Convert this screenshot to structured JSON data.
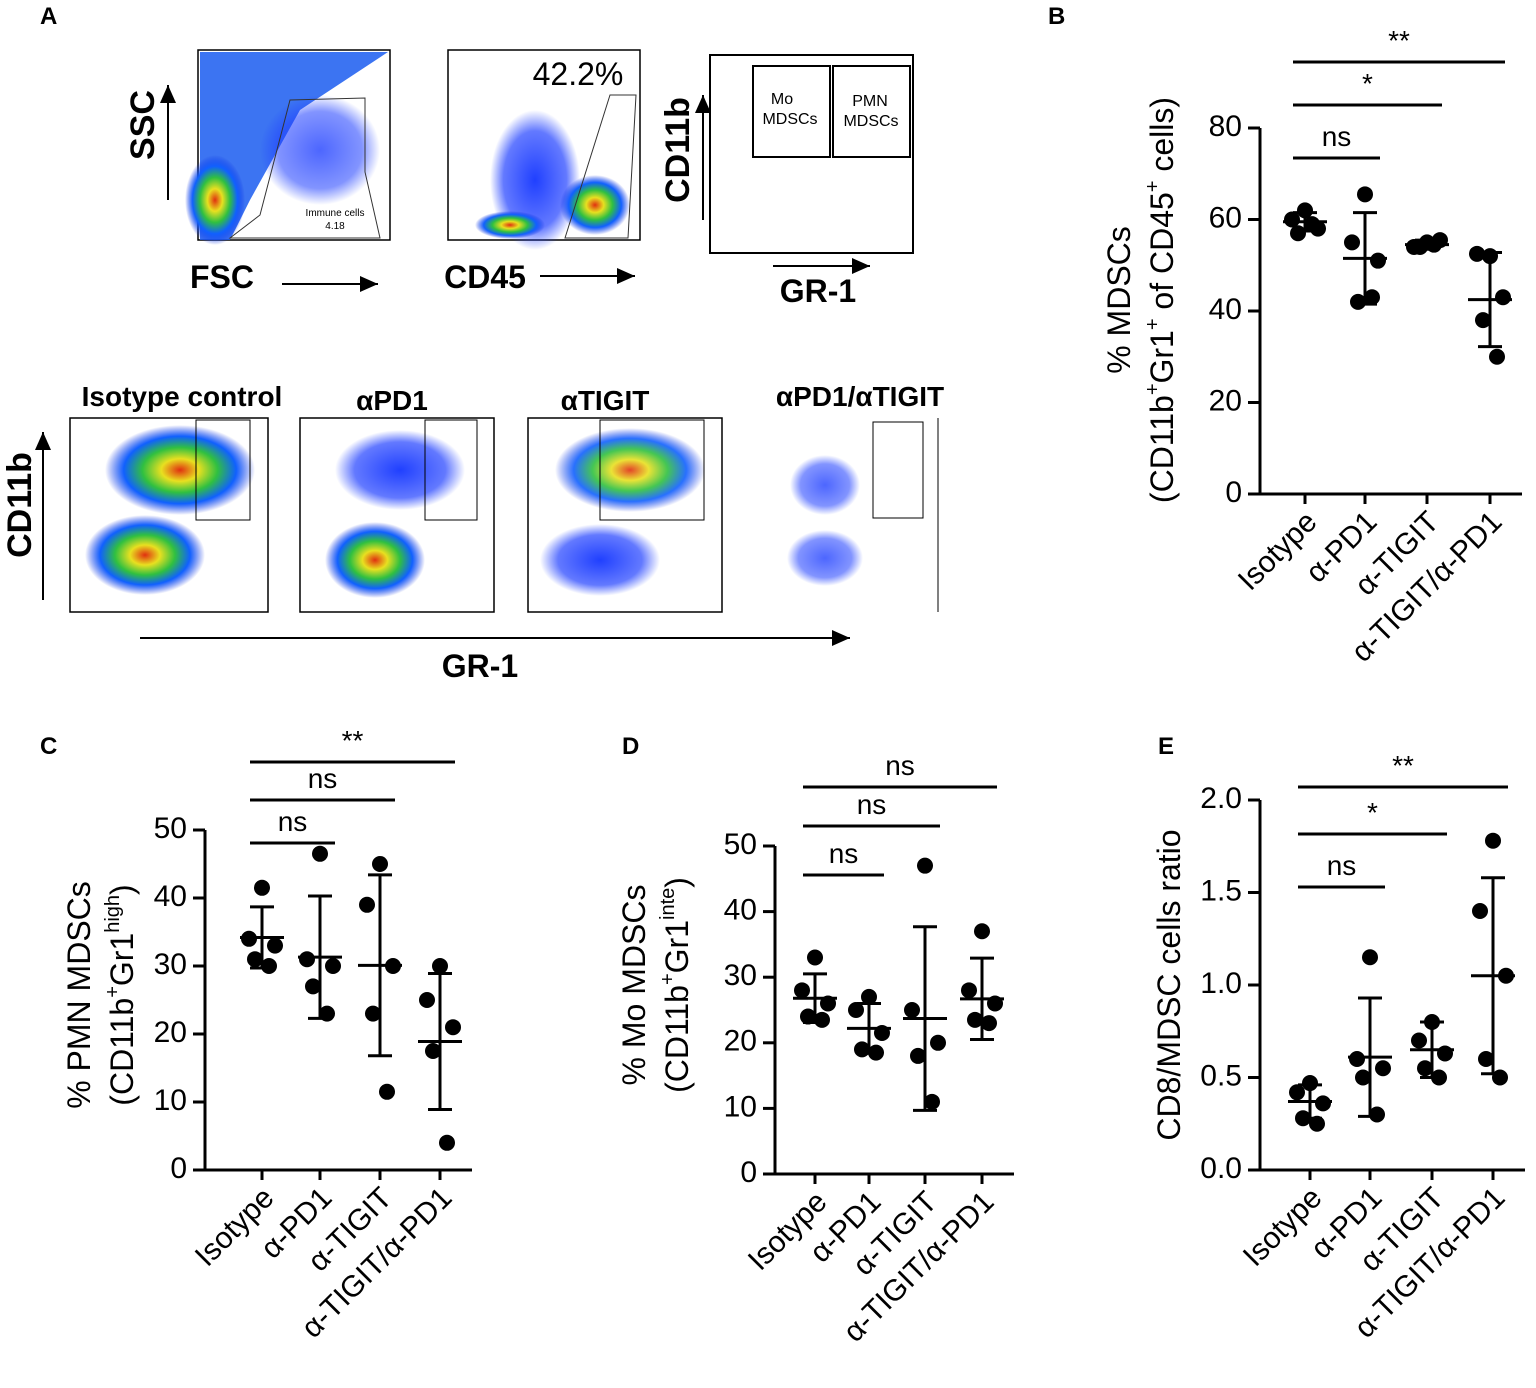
{
  "panel_a": {
    "label": "A",
    "fsc_plot": {
      "y_label": "SSC",
      "x_label": "FSC",
      "gate_label": [
        "Immune cells",
        "4.18"
      ]
    },
    "cd45_plot": {
      "x_label": "CD45",
      "gate_percent": "42.2%"
    },
    "gating_scheme": {
      "y_label": "CD11b",
      "x_label": "GR-1",
      "gates": [
        [
          "Mo",
          "MDSCs"
        ],
        [
          "PMN",
          "MDSCs"
        ]
      ]
    },
    "treatment_plots": {
      "titles": [
        "Isotype control",
        "αPD1",
        "αTIGIT",
        "αPD1/αTIGIT"
      ],
      "y_label": "CD11b",
      "x_label": "GR-1"
    }
  },
  "chart_data": [
    {
      "type": "dotplot",
      "panel_label": "B",
      "ylabel": [
        [
          {
            "text": "% MDSCs"
          }
        ],
        [
          {
            "text": "(CD11b"
          },
          {
            "text": "+",
            "sup": true
          },
          {
            "text": "Gr1"
          },
          {
            "text": "+",
            "sup": true
          },
          {
            "text": " of CD45"
          },
          {
            "text": "+",
            "sup": true
          },
          {
            "text": " cells)"
          }
        ]
      ],
      "categories": [
        "Isotype",
        "α-PD1",
        "α-TIGIT",
        "α-TIGIT/α-PD1"
      ],
      "values": [
        [
          62,
          60,
          58,
          57,
          59
        ],
        [
          65.5,
          55,
          51,
          42,
          43
        ],
        [
          55,
          54,
          55.5,
          54,
          54.5
        ],
        [
          52,
          52.5,
          43,
          38,
          30
        ]
      ],
      "means": [
        59.5,
        51.5,
        54.5,
        42.5
      ],
      "sds": [
        2,
        10,
        1,
        10.3
      ],
      "ylim": [
        0,
        80
      ],
      "yticks": [
        0,
        20,
        40,
        60,
        80
      ],
      "color": "#000000",
      "comparisons": [
        {
          "groups": [
            "Isotype",
            "α-PD1"
          ],
          "label": "ns"
        },
        {
          "groups": [
            "Isotype",
            "α-TIGIT"
          ],
          "label": "*"
        },
        {
          "groups": [
            "Isotype",
            "α-TIGIT/α-PD1"
          ],
          "label": "**"
        }
      ]
    },
    {
      "type": "dotplot",
      "panel_label": "C",
      "ylabel": [
        [
          {
            "text": "% PMN MDSCs"
          }
        ],
        [
          {
            "text": "(CD11b"
          },
          {
            "text": "+",
            "sup": true
          },
          {
            "text": "Gr1"
          },
          {
            "text": "high",
            "sup": true
          },
          {
            "text": ")"
          }
        ]
      ],
      "categories": [
        "Isotype",
        "α-PD1",
        "α-TIGIT",
        "α-TIGIT/α-PD1"
      ],
      "values": [
        [
          41.5,
          34,
          33,
          31,
          30
        ],
        [
          46.5,
          31,
          30,
          27,
          23
        ],
        [
          45,
          39,
          30,
          23,
          11.5
        ],
        [
          30,
          25,
          21,
          17.5,
          4
        ]
      ],
      "means": [
        34.2,
        31.3,
        30.1,
        18.9
      ],
      "sds": [
        4.5,
        9,
        13.3,
        10
      ],
      "ylim": [
        0,
        50
      ],
      "yticks": [
        0,
        10,
        20,
        30,
        40,
        50
      ],
      "color": "#000000",
      "comparisons": [
        {
          "groups": [
            "Isotype",
            "α-PD1"
          ],
          "label": "ns"
        },
        {
          "groups": [
            "Isotype",
            "α-TIGIT"
          ],
          "label": "ns"
        },
        {
          "groups": [
            "Isotype",
            "α-TIGIT/α-PD1"
          ],
          "label": "**"
        }
      ]
    },
    {
      "type": "dotplot",
      "panel_label": "D",
      "ylabel": [
        [
          {
            "text": "% Mo MDSCs"
          }
        ],
        [
          {
            "text": "(CD11b"
          },
          {
            "text": "+",
            "sup": true
          },
          {
            "text": "Gr1"
          },
          {
            "text": "inte",
            "sup": true
          },
          {
            "text": ")"
          }
        ]
      ],
      "categories": [
        "Isotype",
        "α-PD1",
        "α-TIGIT",
        "α-TIGIT/α-PD1"
      ],
      "values": [
        [
          33,
          28,
          26,
          24,
          23.5
        ],
        [
          27,
          25,
          21.5,
          19,
          18.5
        ],
        [
          47,
          25,
          20,
          18,
          11
        ],
        [
          37,
          28,
          26,
          23.5,
          23
        ]
      ],
      "means": [
        26.8,
        22.2,
        23.7,
        26.7
      ],
      "sds": [
        3.7,
        3.8,
        14,
        6.2
      ],
      "ylim": [
        0,
        50
      ],
      "yticks": [
        0,
        10,
        20,
        30,
        40,
        50
      ],
      "color": "#000000",
      "comparisons": [
        {
          "groups": [
            "Isotype",
            "α-PD1"
          ],
          "label": "ns"
        },
        {
          "groups": [
            "Isotype",
            "α-TIGIT"
          ],
          "label": "ns"
        },
        {
          "groups": [
            "Isotype",
            "α-TIGIT/α-PD1"
          ],
          "label": "ns"
        }
      ]
    },
    {
      "type": "dotplot",
      "panel_label": "E",
      "ylabel": [
        [
          {
            "text": "CD8/MDSC cells ratio"
          }
        ]
      ],
      "categories": [
        "Isotype",
        "α-PD1",
        "α-TIGIT",
        "α-TIGIT/α-PD1"
      ],
      "values": [
        [
          0.47,
          0.42,
          0.36,
          0.28,
          0.25
        ],
        [
          1.15,
          0.6,
          0.55,
          0.5,
          0.3
        ],
        [
          0.8,
          0.7,
          0.63,
          0.55,
          0.5
        ],
        [
          1.78,
          1.4,
          1.05,
          0.6,
          0.5
        ]
      ],
      "means": [
        0.37,
        0.61,
        0.65,
        1.05
      ],
      "sds": [
        0.09,
        0.32,
        0.15,
        0.53
      ],
      "ylim": [
        0,
        2
      ],
      "yticks": [
        {
          "value": 0,
          "label": "0.0"
        },
        0.5,
        {
          "value": 1,
          "label": "1.0"
        },
        1.5,
        {
          "value": 2,
          "label": "2.0"
        }
      ],
      "color": "#000000",
      "comparisons": [
        {
          "groups": [
            "Isotype",
            "α-PD1"
          ],
          "label": "ns"
        },
        {
          "groups": [
            "Isotype",
            "α-TIGIT"
          ],
          "label": "*"
        },
        {
          "groups": [
            "Isotype",
            "α-TIGIT/α-PD1"
          ],
          "label": "**"
        }
      ]
    }
  ]
}
